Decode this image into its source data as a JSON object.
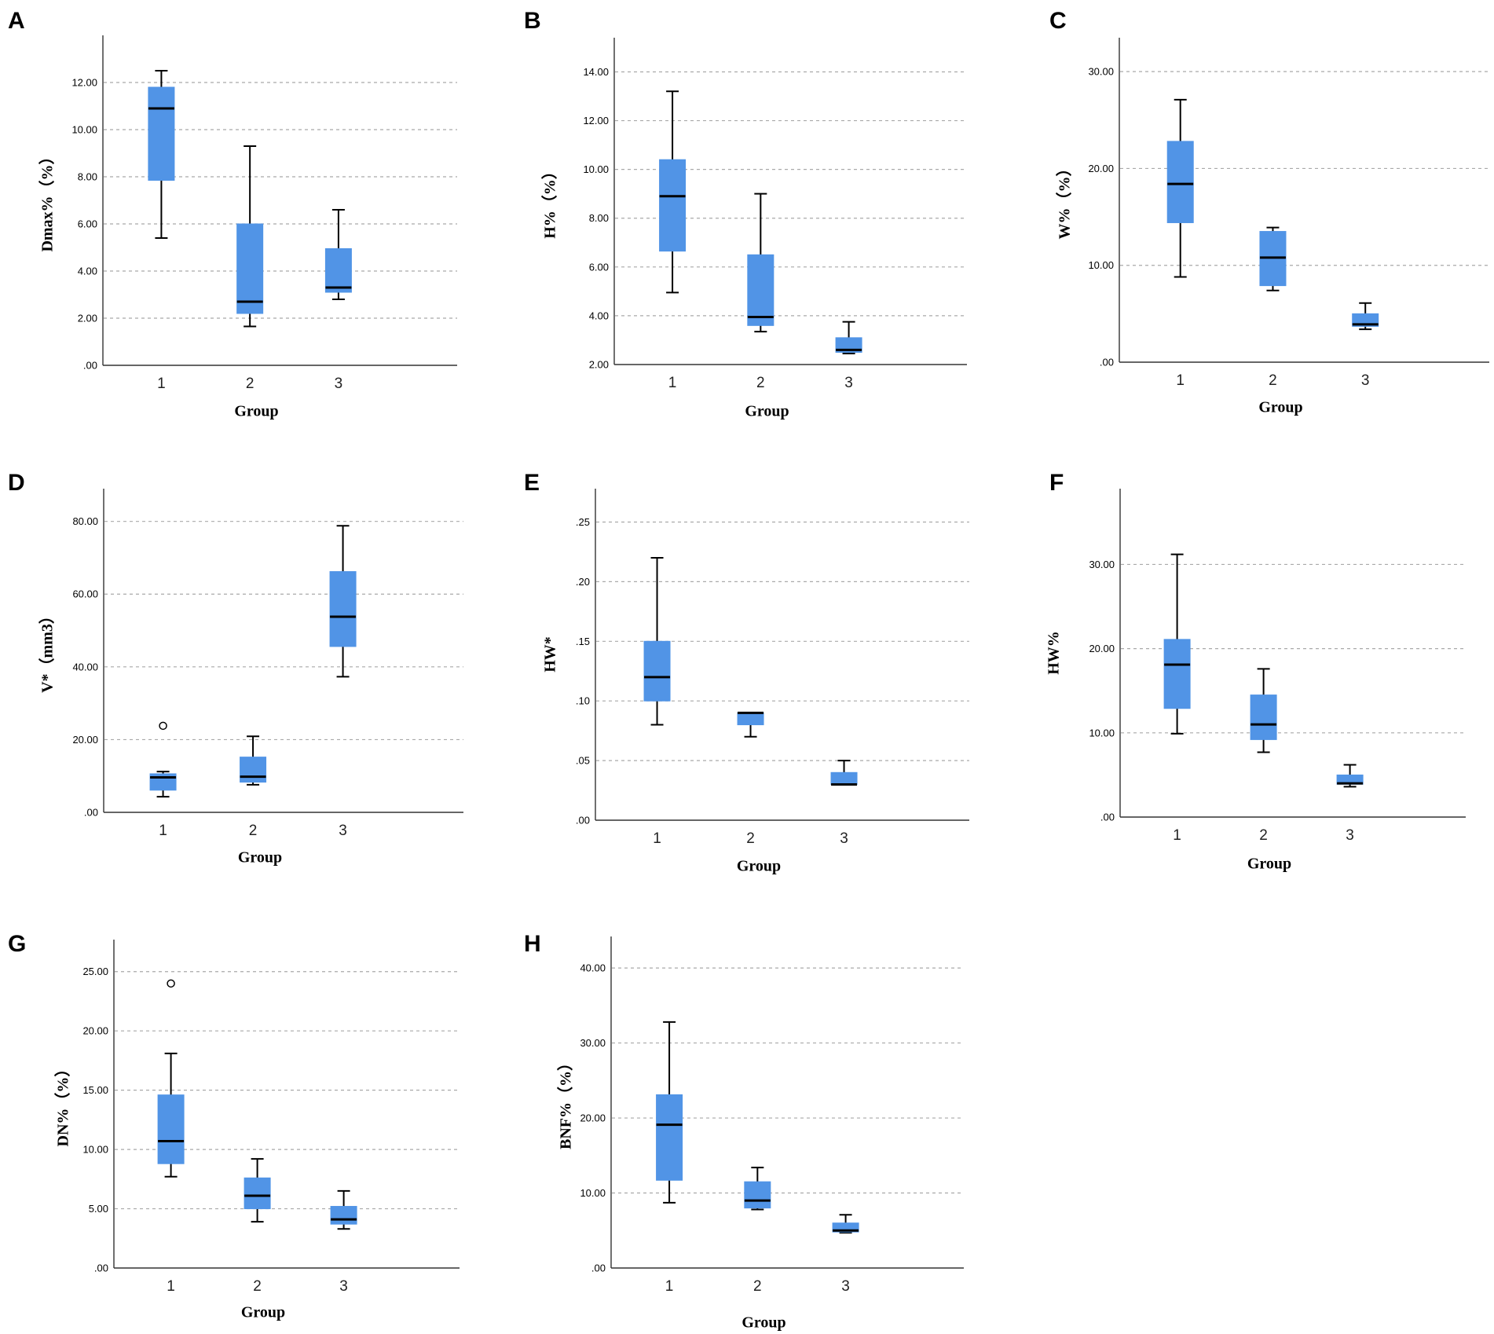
{
  "chart_data": [
    {
      "panel": "A",
      "type": "box",
      "title": "",
      "xlabel": "Group",
      "ylabel": "Dmax%（%）",
      "categories": [
        "1",
        "2",
        "3"
      ],
      "ylim": [
        0,
        14
      ],
      "yticks": [
        0,
        2,
        4,
        6,
        8,
        10,
        12
      ],
      "ytick_labels": [
        ".00",
        "2.00",
        "4.00",
        "6.00",
        "8.00",
        "10.00",
        "12.00"
      ],
      "boxes": [
        {
          "min": 5.4,
          "q1": 7.85,
          "median": 10.9,
          "q3": 11.8,
          "max": 12.5,
          "outliers": []
        },
        {
          "min": 1.65,
          "q1": 2.2,
          "median": 2.7,
          "q3": 6.0,
          "max": 9.3,
          "outliers": []
        },
        {
          "min": 2.8,
          "q1": 3.1,
          "median": 3.3,
          "q3": 4.95,
          "max": 6.6,
          "outliers": []
        }
      ]
    },
    {
      "panel": "B",
      "type": "box",
      "title": "",
      "xlabel": "Group",
      "ylabel": "H%（%）",
      "categories": [
        "1",
        "2",
        "3"
      ],
      "ylim": [
        2,
        15.4
      ],
      "yticks": [
        2,
        4,
        6,
        8,
        10,
        12,
        14
      ],
      "ytick_labels": [
        "2.00",
        "4.00",
        "6.00",
        "8.00",
        "10.00",
        "12.00",
        "14.00"
      ],
      "boxes": [
        {
          "min": 4.95,
          "q1": 6.65,
          "median": 8.9,
          "q3": 10.4,
          "max": 13.2,
          "outliers": []
        },
        {
          "min": 3.35,
          "q1": 3.6,
          "median": 3.95,
          "q3": 6.5,
          "max": 9.0,
          "outliers": []
        },
        {
          "min": 2.45,
          "q1": 2.5,
          "median": 2.6,
          "q3": 3.1,
          "max": 3.75,
          "outliers": []
        }
      ]
    },
    {
      "panel": "C",
      "type": "box",
      "title": "",
      "xlabel": "Group",
      "ylabel": "W%（%）",
      "categories": [
        "1",
        "2",
        "3"
      ],
      "ylim": [
        0,
        33.5
      ],
      "yticks": [
        0,
        10,
        20,
        30
      ],
      "ytick_labels": [
        ".00",
        "10.00",
        "20.00",
        "30.00"
      ],
      "boxes": [
        {
          "min": 8.8,
          "q1": 14.4,
          "median": 18.4,
          "q3": 22.8,
          "max": 27.1,
          "outliers": []
        },
        {
          "min": 7.4,
          "q1": 7.9,
          "median": 10.8,
          "q3": 13.5,
          "max": 13.9,
          "outliers": []
        },
        {
          "min": 3.4,
          "q1": 3.7,
          "median": 3.9,
          "q3": 5.0,
          "max": 6.1,
          "outliers": []
        }
      ]
    },
    {
      "panel": "D",
      "type": "box",
      "title": "",
      "xlabel": "Group",
      "ylabel": "V*（mm3）",
      "categories": [
        "1",
        "2",
        "3"
      ],
      "ylim": [
        0,
        89
      ],
      "yticks": [
        0,
        20,
        40,
        60,
        80
      ],
      "ytick_labels": [
        ".00",
        "20.00",
        "40.00",
        "60.00",
        "80.00"
      ],
      "boxes": [
        {
          "min": 4.3,
          "q1": 6.1,
          "median": 9.6,
          "q3": 10.6,
          "max": 11.2,
          "outliers": [
            23.8
          ]
        },
        {
          "min": 7.6,
          "q1": 8.3,
          "median": 9.8,
          "q3": 15.2,
          "max": 20.9,
          "outliers": []
        },
        {
          "min": 37.3,
          "q1": 45.6,
          "median": 53.8,
          "q3": 66.2,
          "max": 78.8,
          "outliers": []
        }
      ]
    },
    {
      "panel": "E",
      "type": "box",
      "title": "",
      "xlabel": "Group",
      "ylabel": "HW*",
      "categories": [
        "1",
        "2",
        "3"
      ],
      "ylim": [
        0,
        0.278
      ],
      "yticks": [
        0,
        0.05,
        0.1,
        0.15,
        0.2,
        0.25
      ],
      "ytick_labels": [
        ".00",
        ".05",
        ".10",
        ".15",
        ".20",
        ".25"
      ],
      "boxes": [
        {
          "min": 0.08,
          "q1": 0.1,
          "median": 0.12,
          "q3": 0.15,
          "max": 0.22,
          "outliers": []
        },
        {
          "min": 0.07,
          "q1": 0.08,
          "median": 0.09,
          "q3": 0.09,
          "max": 0.09,
          "outliers": []
        },
        {
          "min": 0.03,
          "q1": 0.03,
          "median": 0.03,
          "q3": 0.04,
          "max": 0.05,
          "outliers": []
        }
      ]
    },
    {
      "panel": "F",
      "type": "box",
      "title": "",
      "xlabel": "Group",
      "ylabel": "HW%",
      "categories": [
        "1",
        "2",
        "3"
      ],
      "ylim": [
        0,
        39
      ],
      "yticks": [
        0,
        10,
        20,
        30
      ],
      "ytick_labels": [
        ".00",
        "10.00",
        "20.00",
        "30.00"
      ],
      "boxes": [
        {
          "min": 9.9,
          "q1": 12.9,
          "median": 18.1,
          "q3": 21.1,
          "max": 31.2,
          "outliers": []
        },
        {
          "min": 7.7,
          "q1": 9.2,
          "median": 11.0,
          "q3": 14.5,
          "max": 17.6,
          "outliers": []
        },
        {
          "min": 3.6,
          "q1": 3.9,
          "median": 4.0,
          "q3": 5.0,
          "max": 6.2,
          "outliers": []
        }
      ]
    },
    {
      "panel": "G",
      "type": "box",
      "title": "",
      "xlabel": "Group",
      "ylabel": "DN%（%）",
      "categories": [
        "1",
        "2",
        "3"
      ],
      "ylim": [
        0,
        27.7
      ],
      "yticks": [
        0,
        5,
        10,
        15,
        20,
        25
      ],
      "ytick_labels": [
        ".00",
        "5.00",
        "10.00",
        "15.00",
        "20.00",
        "25.00"
      ],
      "boxes": [
        {
          "min": 7.7,
          "q1": 8.8,
          "median": 10.7,
          "q3": 14.6,
          "max": 18.1,
          "outliers": [
            24.0
          ]
        },
        {
          "min": 3.9,
          "q1": 5.0,
          "median": 6.1,
          "q3": 7.6,
          "max": 9.2,
          "outliers": []
        },
        {
          "min": 3.3,
          "q1": 3.7,
          "median": 4.1,
          "q3": 5.2,
          "max": 6.5,
          "outliers": []
        }
      ]
    },
    {
      "panel": "H",
      "type": "box",
      "title": "",
      "xlabel": "Group",
      "ylabel": "BNF%（%）",
      "categories": [
        "1",
        "2",
        "3"
      ],
      "ylim": [
        0,
        44.2
      ],
      "yticks": [
        0,
        10,
        20,
        30,
        40
      ],
      "ytick_labels": [
        ".00",
        "10.00",
        "20.00",
        "30.00",
        "40.00"
      ],
      "boxes": [
        {
          "min": 8.7,
          "q1": 11.7,
          "median": 19.1,
          "q3": 23.1,
          "max": 32.8,
          "outliers": []
        },
        {
          "min": 7.8,
          "q1": 8.0,
          "median": 9.0,
          "q3": 11.5,
          "max": 13.4,
          "outliers": []
        },
        {
          "min": 4.7,
          "q1": 4.8,
          "median": 5.0,
          "q3": 6.0,
          "max": 7.1,
          "outliers": []
        }
      ]
    }
  ]
}
